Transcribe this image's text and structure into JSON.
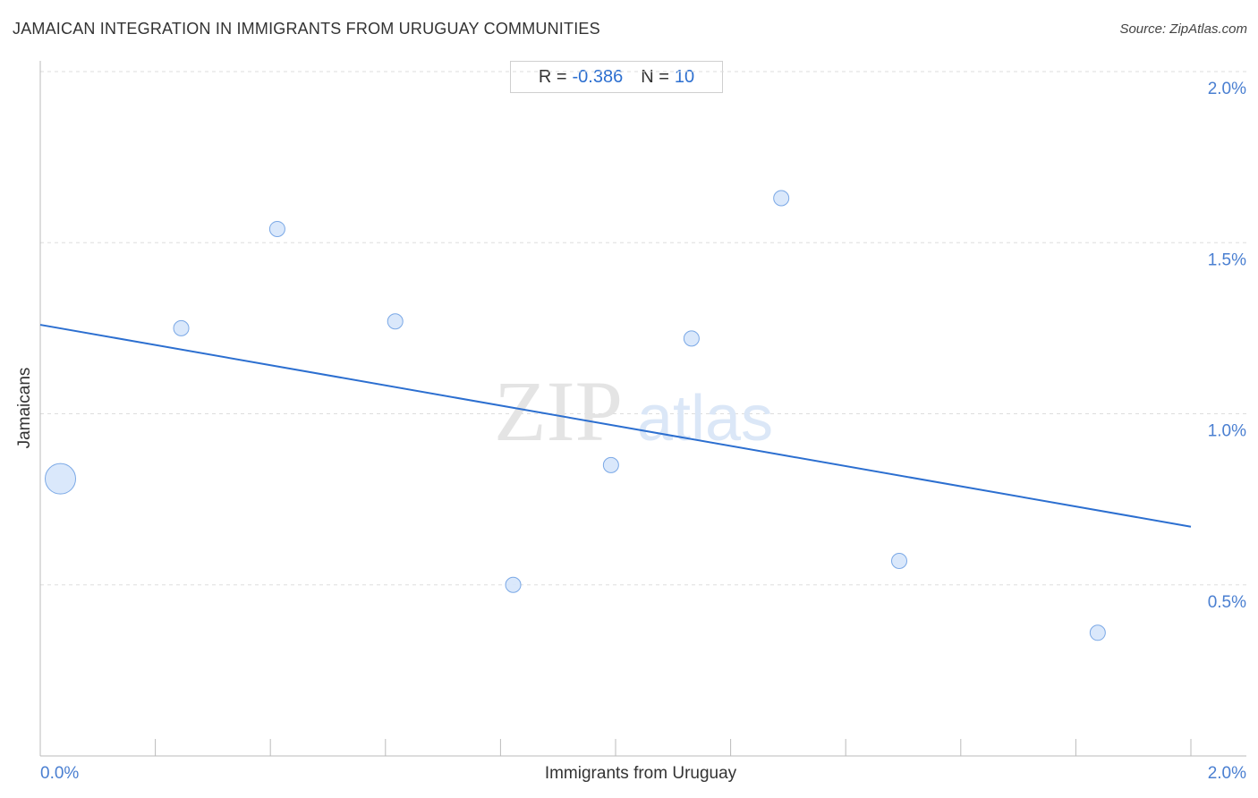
{
  "title": "JAMAICAN INTEGRATION IN IMMIGRANTS FROM URUGUAY COMMUNITIES",
  "source": "Source: ZipAtlas.com",
  "stats": {
    "r_label": "R =",
    "r_value": "-0.386",
    "n_label": "N =",
    "n_value": "10"
  },
  "watermark": {
    "zip": "ZIP",
    "atlas": "atlas"
  },
  "colors": {
    "accent": "#2c6fd0",
    "point_fill": "#d6e6fb",
    "point_stroke": "#7aa8e6",
    "grid": "#dddddd"
  },
  "chart_data": {
    "type": "scatter",
    "xlabel": "Immigrants from Uruguay",
    "ylabel": "Jamaicans",
    "xlim": [
      0,
      2.0
    ],
    "ylim": [
      0,
      2.0
    ],
    "x_tick_labels": [
      {
        "value": 0.0,
        "label": "0.0%"
      },
      {
        "value": 2.0,
        "label": "2.0%"
      }
    ],
    "y_tick_labels": [
      {
        "value": 0.5,
        "label": "0.5%"
      },
      {
        "value": 1.0,
        "label": "1.0%"
      },
      {
        "value": 1.5,
        "label": "1.5%"
      },
      {
        "value": 2.0,
        "label": "2.0%"
      }
    ],
    "points": [
      {
        "x": 0.035,
        "y": 0.81,
        "size": "large"
      },
      {
        "x": 0.245,
        "y": 1.25,
        "size": "small"
      },
      {
        "x": 0.412,
        "y": 1.54,
        "size": "small"
      },
      {
        "x": 0.617,
        "y": 1.27,
        "size": "small"
      },
      {
        "x": 0.822,
        "y": 0.5,
        "size": "small"
      },
      {
        "x": 0.992,
        "y": 0.85,
        "size": "small"
      },
      {
        "x": 1.132,
        "y": 1.22,
        "size": "small"
      },
      {
        "x": 1.288,
        "y": 1.63,
        "size": "small"
      },
      {
        "x": 1.493,
        "y": 0.57,
        "size": "small"
      },
      {
        "x": 1.838,
        "y": 0.36,
        "size": "small"
      }
    ],
    "trendline": {
      "x": [
        0.0,
        2.0
      ],
      "y": [
        1.26,
        0.67
      ]
    },
    "grid": true
  }
}
